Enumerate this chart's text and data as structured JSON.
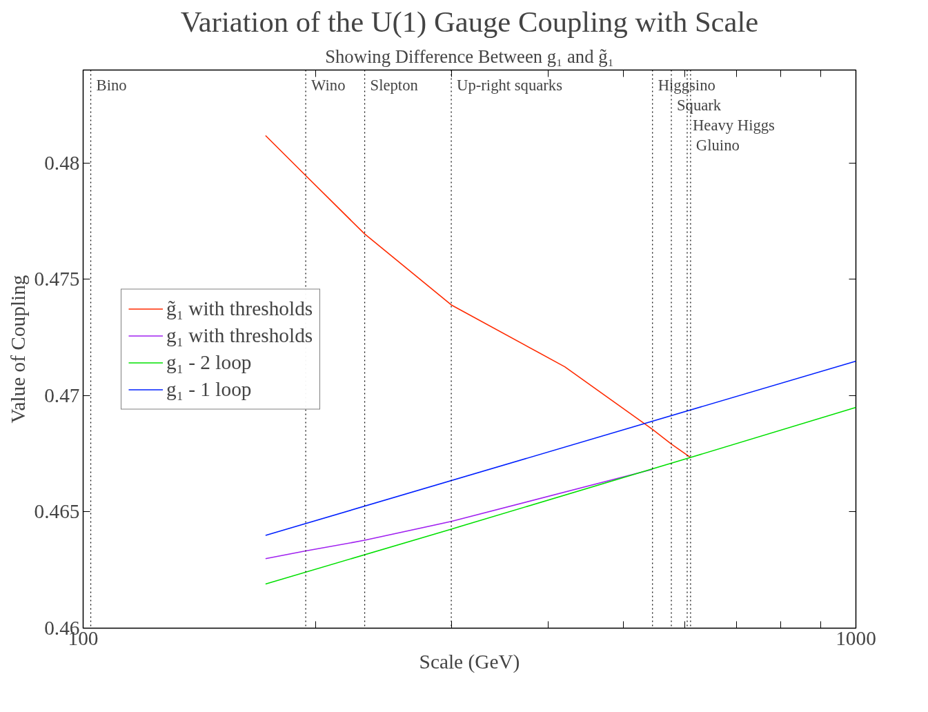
{
  "chart_data": {
    "type": "line",
    "title": "Variation of the U(1) Gauge Coupling with Scale",
    "subtitle": "Showing Difference Between g₁ and g̃₁",
    "xlabel": "Scale (GeV)",
    "ylabel": "Value of Coupling",
    "log": "x",
    "xlim": [
      100,
      1000
    ],
    "xticks": [
      100,
      {
        "value": 200,
        "label": null
      },
      {
        "value": 300,
        "label": null
      },
      {
        "value": 400,
        "label": null
      },
      {
        "value": 500,
        "label": null
      },
      {
        "value": 600,
        "label": null
      },
      {
        "value": 700,
        "label": null
      },
      {
        "value": 800,
        "label": null
      },
      {
        "value": 900,
        "label": null
      },
      1000
    ],
    "ylim": [
      0.46,
      0.484
    ],
    "yticks": [
      0.46,
      0.465,
      0.47,
      0.475,
      0.48
    ],
    "grid": false,
    "legend": "left",
    "line_style": "solid",
    "series": [
      {
        "name": "g̃₁ with thresholds",
        "color": "#ff2a00",
        "x": [
          172.2,
          194.1,
          231.4,
          299.5,
          420,
          545.5,
          577,
          611
        ],
        "values": [
          0.48118,
          0.47946,
          0.47695,
          0.4739,
          0.47124,
          0.46855,
          0.46792,
          0.46734
        ]
      },
      {
        "name": "g₁ with thresholds",
        "color": "#a020f0",
        "x": [
          172.2,
          194.1,
          231.4,
          299.5,
          545.5
        ],
        "values": [
          0.46299,
          0.46332,
          0.46378,
          0.46459,
          0.46683
        ]
      },
      {
        "name": "g₁ - 2 loop",
        "color": "#00e000",
        "x": [
          172.2,
          299.5,
          611,
          1000
        ],
        "values": [
          0.4619,
          0.46426,
          0.46734,
          0.46949
        ]
      },
      {
        "name": "g₁ - 1 loop",
        "color": "#0020ff",
        "x": [
          172.2,
          1000
        ],
        "values": [
          0.46399,
          0.47148
        ]
      }
    ],
    "ref_lines": [
      {
        "axis": "x",
        "value": 102.3,
        "label": "Bino",
        "line_style": "dotted"
      },
      {
        "axis": "x",
        "value": 194.1,
        "label": "Wino",
        "line_style": "dotted"
      },
      {
        "axis": "x",
        "value": 231.4,
        "label": "Slepton",
        "line_style": "dotted"
      },
      {
        "axis": "x",
        "value": 299.5,
        "label": "Up-right squarks",
        "line_style": "dotted"
      },
      {
        "axis": "x",
        "value": 545.5,
        "label": "Higgsino",
        "line_style": "dotted"
      },
      {
        "axis": "x",
        "value": 577,
        "label": "Squark",
        "line_style": "dotted"
      },
      {
        "axis": "x",
        "value": 604.9,
        "label": "Heavy Higgs",
        "line_style": "dotted"
      },
      {
        "axis": "x",
        "value": 611,
        "label": "Gluino",
        "line_style": "dotted"
      }
    ]
  }
}
